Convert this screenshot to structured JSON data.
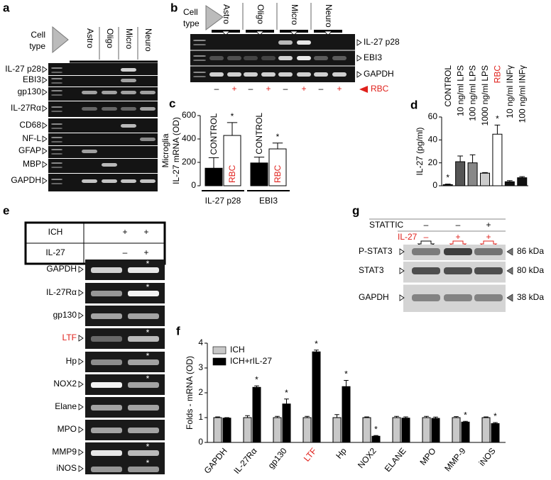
{
  "panels": {
    "a": {
      "letter": "a",
      "header": [
        "Cell",
        "type"
      ],
      "lanes": [
        "Astro",
        "Oligo",
        "Micro",
        "Neuro"
      ],
      "rows": [
        "IL-27 p28",
        "EBI3",
        "gp130",
        "IL-27Rα",
        "CD68",
        "NF-L",
        "GFAP",
        "MBP",
        "GAPDH"
      ]
    },
    "b": {
      "letter": "b",
      "header": [
        "Cell",
        "type"
      ],
      "lanes": [
        "Astro",
        "Oligo",
        "Micro",
        "Neuro"
      ],
      "rows": [
        "IL-27 p28",
        "EBI3",
        "GAPDH"
      ],
      "signs": [
        "–",
        "+",
        "–",
        "+",
        "–",
        "+",
        "–",
        "+"
      ],
      "treatment": "RBC",
      "plus_color": "#e0201b"
    },
    "e": {
      "letter": "e",
      "conditions": [
        {
          "name": "ICH",
          "signs": [
            "+",
            "+"
          ]
        },
        {
          "name": "IL-27",
          "signs": [
            "–",
            "+"
          ]
        }
      ],
      "rows": [
        "GAPDH",
        "IL-27Rα",
        "gp130",
        "LTF",
        "Hp",
        "NOX2",
        "Elane",
        "MPO",
        "MMP9",
        "iNOS"
      ],
      "stars": [
        "*",
        "*",
        null,
        "*",
        "*",
        "*",
        null,
        null,
        "*",
        "*"
      ],
      "label_colors": [
        null,
        null,
        null,
        "#e0201b",
        null,
        null,
        null,
        null,
        null,
        null
      ]
    },
    "g": {
      "letter": "g",
      "conditions": [
        {
          "name": "STATTIC",
          "signs": [
            "–",
            "–",
            "+"
          ],
          "color": "#000000"
        },
        {
          "name": "IL-27",
          "signs": [
            "–",
            "+",
            "+"
          ],
          "color": "#e0201b"
        }
      ],
      "rows": [
        "P-STAT3",
        "STAT3",
        "GAPDH"
      ],
      "sizes": [
        "86 kDa",
        "80 kDa",
        "38 kDa"
      ]
    }
  },
  "chart_data": [
    {
      "type": "bar",
      "letter": "c",
      "ylabel": [
        "Microglia",
        "IL-27 mRNA (OD)"
      ],
      "categories": [
        "IL-27 p28",
        "EBI3"
      ],
      "series": [
        {
          "name": "CONTROL",
          "color": "#000000",
          "label_color": "#000000",
          "values": [
            150,
            195
          ],
          "errors": [
            90,
            50
          ]
        },
        {
          "name": "RBC",
          "color": "#ffffff",
          "label_color": "#e0201b",
          "values": [
            430,
            315
          ],
          "errors": [
            110,
            50
          ],
          "significance": [
            "*",
            "*"
          ]
        }
      ],
      "ylim": [
        0,
        600
      ],
      "yticks": [
        0,
        200,
        400,
        600
      ]
    },
    {
      "type": "bar",
      "letter": "d",
      "ylabel": [
        "IL-27 (pg/ml)"
      ],
      "categories": [
        "CONTROL",
        "10 ng/ml LPS",
        "100 ng/ml LPS",
        "1000 ng/ml LPS",
        "RBC",
        "10 ng/ml INFγ",
        "100 ng/ml INFγ"
      ],
      "values": [
        1,
        21,
        20,
        11,
        45,
        3.5,
        7
      ],
      "errors": [
        0.5,
        5,
        7,
        0.5,
        8,
        1,
        1
      ],
      "colors": [
        "#222222",
        "#555555",
        "#888888",
        "#cccccc",
        "#ffffff",
        "#111111",
        "#111111"
      ],
      "label_colors": [
        null,
        null,
        null,
        null,
        "#e0201b",
        null,
        null
      ],
      "significance": [
        "*",
        null,
        null,
        null,
        "*",
        null,
        null
      ],
      "ylim": [
        0,
        60
      ],
      "yticks": [
        0,
        20,
        40,
        60
      ]
    },
    {
      "type": "bar",
      "letter": "f",
      "ylabel": [
        "Folds - mRNA (OD)"
      ],
      "categories": [
        "GAPDH",
        "IL-27Rα",
        "gp130",
        "LTF",
        "Hp",
        "NOX2",
        "ELANE",
        "MPO",
        "MMP-9",
        "iNOS"
      ],
      "label_colors": [
        null,
        null,
        null,
        "#e0201b",
        null,
        null,
        null,
        null,
        null,
        null
      ],
      "series": [
        {
          "name": "ICH",
          "color": "#c8c8c8",
          "values": [
            1,
            1,
            1,
            1,
            1,
            1,
            1,
            1,
            1,
            1
          ],
          "errors": [
            0.03,
            0.08,
            0.05,
            0.05,
            0.12,
            0.03,
            0.05,
            0.05,
            0.04,
            0.03
          ]
        },
        {
          "name": "ICH+rIL-27",
          "color": "#000000",
          "values": [
            0.98,
            2.22,
            1.55,
            3.65,
            2.25,
            0.25,
            0.98,
            0.97,
            0.82,
            0.76
          ],
          "errors": [
            0.02,
            0.06,
            0.2,
            0.07,
            0.25,
            0.03,
            0.05,
            0.05,
            0.03,
            0.04
          ],
          "significance": [
            null,
            "*",
            "*",
            "*",
            "*",
            "*",
            null,
            null,
            "*",
            "*"
          ]
        }
      ],
      "ylim": [
        0,
        4
      ],
      "yticks": [
        0,
        1,
        2,
        3,
        4
      ],
      "legend": "top-left"
    }
  ]
}
